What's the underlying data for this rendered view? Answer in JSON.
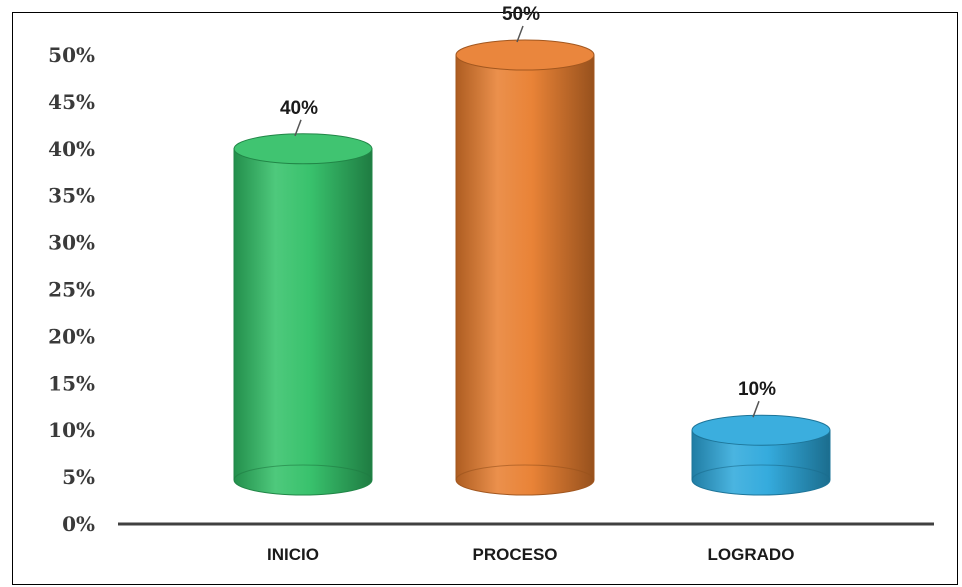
{
  "chart_data": {
    "type": "bar",
    "style": "3d-cylinder",
    "categories": [
      "INICIO",
      "PROCESO",
      "LOGRADO"
    ],
    "values": [
      40,
      50,
      10
    ],
    "data_labels": [
      "40%",
      "50%",
      "10%"
    ],
    "colors": [
      "#2fbf65",
      "#e87c2c",
      "#2aa7db"
    ],
    "ylim": [
      0,
      50
    ],
    "yticks": [
      0,
      5,
      10,
      15,
      20,
      25,
      30,
      35,
      40,
      45,
      50
    ],
    "ytick_labels": [
      "0%",
      "5%",
      "10%",
      "15%",
      "20%",
      "25%",
      "30%",
      "35%",
      "40%",
      "45%",
      "50%"
    ],
    "grid": false,
    "legend": "none",
    "title": "",
    "xlabel": "",
    "ylabel": ""
  }
}
